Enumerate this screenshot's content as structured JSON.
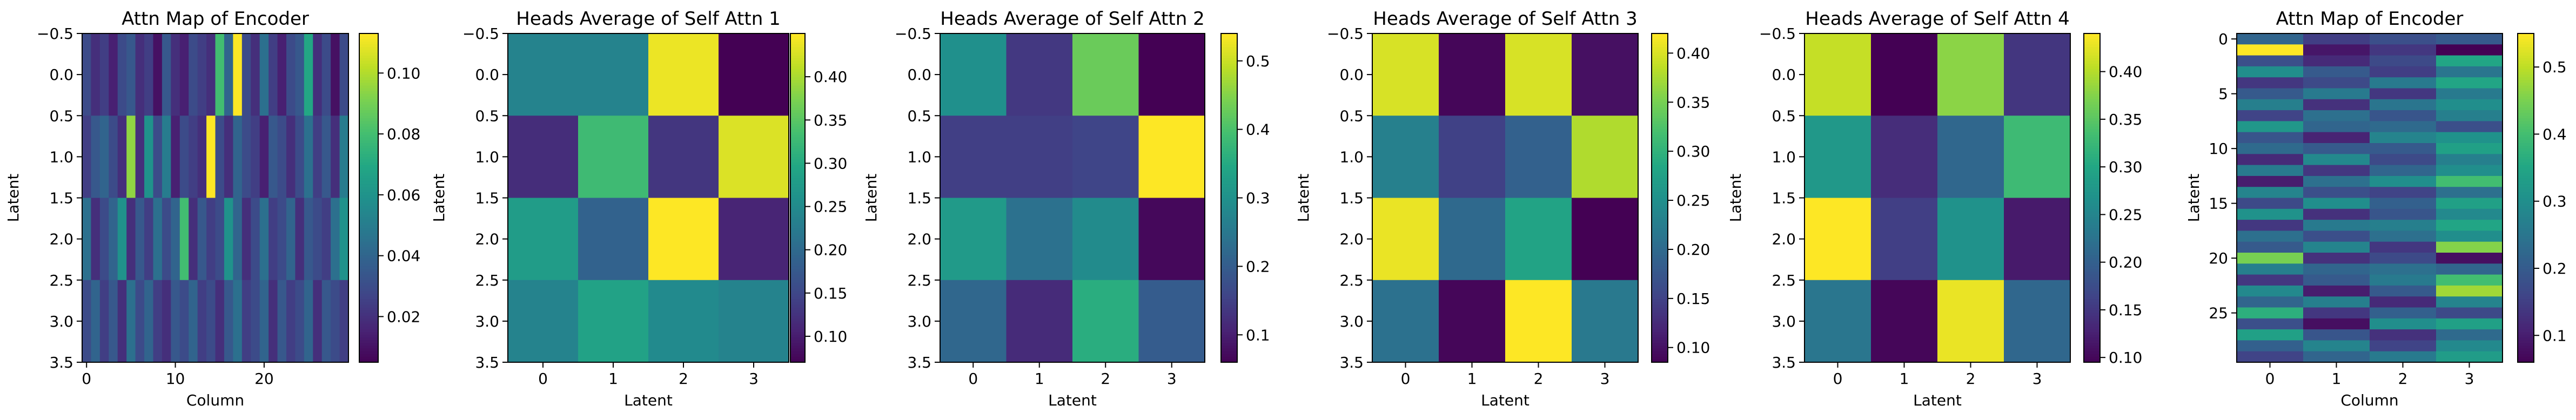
{
  "figure": {
    "panel_count": 6
  },
  "chart_data": [
    {
      "type": "heatmap",
      "title": "Attn Map of Encoder",
      "xlabel": "Column",
      "ylabel": "Latent",
      "x_ticks": [
        0,
        10,
        20
      ],
      "y_ticks": [
        -0.5,
        0.0,
        0.5,
        1.0,
        1.5,
        2.0,
        2.5,
        3.0,
        3.5
      ],
      "y_tick_labels": [
        "−0.5",
        "0.0",
        "0.5",
        "1.0",
        "1.5",
        "2.0",
        "2.5",
        "3.0",
        "3.5"
      ],
      "colorbar_ticks": [
        0.02,
        0.04,
        0.06,
        0.08,
        0.1
      ],
      "colorbar_tick_labels": [
        "0.02",
        "0.04",
        "0.06",
        "0.08",
        "0.10"
      ],
      "vmin": 0.005,
      "vmax": 0.113,
      "values": [
        [
          0.03,
          0.02,
          0.025,
          0.015,
          0.03,
          0.035,
          0.02,
          0.025,
          0.01,
          0.035,
          0.02,
          0.015,
          0.03,
          0.025,
          0.02,
          0.08,
          0.04,
          0.113,
          0.03,
          0.02,
          0.045,
          0.025,
          0.015,
          0.03,
          0.035,
          0.07,
          0.02,
          0.03,
          0.01,
          0.03
        ],
        [
          0.025,
          0.035,
          0.04,
          0.03,
          0.02,
          0.095,
          0.02,
          0.06,
          0.03,
          0.05,
          0.015,
          0.03,
          0.025,
          0.02,
          0.113,
          0.03,
          0.02,
          0.04,
          0.03,
          0.025,
          0.015,
          0.035,
          0.03,
          0.02,
          0.03,
          0.045,
          0.025,
          0.035,
          0.02,
          0.05
        ],
        [
          0.045,
          0.02,
          0.03,
          0.04,
          0.06,
          0.02,
          0.035,
          0.025,
          0.045,
          0.03,
          0.04,
          0.08,
          0.02,
          0.035,
          0.025,
          0.03,
          0.06,
          0.04,
          0.02,
          0.03,
          0.045,
          0.025,
          0.03,
          0.04,
          0.02,
          0.035,
          0.03,
          0.025,
          0.045,
          0.06
        ],
        [
          0.03,
          0.04,
          0.025,
          0.035,
          0.02,
          0.045,
          0.03,
          0.04,
          0.025,
          0.02,
          0.035,
          0.03,
          0.04,
          0.025,
          0.03,
          0.02,
          0.035,
          0.045,
          0.025,
          0.03,
          0.04,
          0.02,
          0.035,
          0.025,
          0.03,
          0.04,
          0.02,
          0.035,
          0.03,
          0.025
        ]
      ]
    },
    {
      "type": "heatmap",
      "title": "Heads Average of Self Attn 1",
      "xlabel": "Latent",
      "ylabel": "Latent",
      "x_ticks": [
        0,
        1,
        2,
        3
      ],
      "y_ticks": [
        -0.5,
        0.0,
        0.5,
        1.0,
        1.5,
        2.0,
        2.5,
        3.0,
        3.5
      ],
      "y_tick_labels": [
        "−0.5",
        "0.0",
        "0.5",
        "1.0",
        "1.5",
        "2.0",
        "2.5",
        "3.0",
        "3.5"
      ],
      "colorbar_ticks": [
        0.1,
        0.15,
        0.2,
        0.25,
        0.3,
        0.35,
        0.4
      ],
      "colorbar_tick_labels": [
        "0.10",
        "0.15",
        "0.20",
        "0.25",
        "0.30",
        "0.35",
        "0.40"
      ],
      "vmin": 0.07,
      "vmax": 0.45,
      "values": [
        [
          0.24,
          0.24,
          0.44,
          0.07
        ],
        [
          0.12,
          0.33,
          0.13,
          0.43
        ],
        [
          0.28,
          0.19,
          0.45,
          0.11
        ],
        [
          0.24,
          0.29,
          0.25,
          0.24
        ]
      ]
    },
    {
      "type": "heatmap",
      "title": "Heads Average of Self Attn 2",
      "xlabel": "Latent",
      "ylabel": "Latent",
      "x_ticks": [
        0,
        1,
        2,
        3
      ],
      "y_ticks": [
        -0.5,
        0.0,
        0.5,
        1.0,
        1.5,
        2.0,
        2.5,
        3.0,
        3.5
      ],
      "y_tick_labels": [
        "−0.5",
        "0.0",
        "0.5",
        "1.0",
        "1.5",
        "2.0",
        "2.5",
        "3.0",
        "3.5"
      ],
      "colorbar_ticks": [
        0.1,
        0.2,
        0.3,
        0.4,
        0.5
      ],
      "colorbar_tick_labels": [
        "0.1",
        "0.2",
        "0.3",
        "0.4",
        "0.5"
      ],
      "vmin": 0.06,
      "vmax": 0.54,
      "values": [
        [
          0.3,
          0.14,
          0.43,
          0.06
        ],
        [
          0.15,
          0.15,
          0.16,
          0.54
        ],
        [
          0.32,
          0.24,
          0.29,
          0.07
        ],
        [
          0.22,
          0.12,
          0.36,
          0.2
        ]
      ]
    },
    {
      "type": "heatmap",
      "title": "Heads Average of Self Attn 3",
      "xlabel": "Latent",
      "ylabel": "Latent",
      "x_ticks": [
        0,
        1,
        2,
        3
      ],
      "y_ticks": [
        -0.5,
        0.0,
        0.5,
        1.0,
        1.5,
        2.0,
        2.5,
        3.0,
        3.5
      ],
      "y_tick_labels": [
        "−0.5",
        "0.0",
        "0.5",
        "1.0",
        "1.5",
        "2.0",
        "2.5",
        "3.0",
        "3.5"
      ],
      "colorbar_ticks": [
        0.1,
        0.15,
        0.2,
        0.25,
        0.3,
        0.35,
        0.4
      ],
      "colorbar_tick_labels": [
        "0.10",
        "0.15",
        "0.20",
        "0.25",
        "0.30",
        "0.35",
        "0.40"
      ],
      "vmin": 0.085,
      "vmax": 0.42,
      "values": [
        [
          0.4,
          0.09,
          0.4,
          0.1
        ],
        [
          0.23,
          0.15,
          0.19,
          0.38
        ],
        [
          0.41,
          0.2,
          0.28,
          0.085
        ],
        [
          0.21,
          0.09,
          0.42,
          0.22
        ]
      ]
    },
    {
      "type": "heatmap",
      "title": "Heads Average of Self Attn 4",
      "xlabel": "Latent",
      "ylabel": "Latent",
      "x_ticks": [
        0,
        1,
        2,
        3
      ],
      "y_ticks": [
        -0.5,
        0.0,
        0.5,
        1.0,
        1.5,
        2.0,
        2.5,
        3.0,
        3.5
      ],
      "y_tick_labels": [
        "−0.5",
        "0.0",
        "0.5",
        "1.0",
        "1.5",
        "2.0",
        "2.5",
        "3.0",
        "3.5"
      ],
      "colorbar_ticks": [
        0.1,
        0.15,
        0.2,
        0.25,
        0.3,
        0.35,
        0.4
      ],
      "colorbar_tick_labels": [
        "0.10",
        "0.15",
        "0.20",
        "0.25",
        "0.30",
        "0.35",
        "0.40"
      ],
      "vmin": 0.095,
      "vmax": 0.44,
      "values": [
        [
          0.41,
          0.095,
          0.38,
          0.15
        ],
        [
          0.28,
          0.14,
          0.21,
          0.33
        ],
        [
          0.44,
          0.16,
          0.27,
          0.12
        ],
        [
          0.23,
          0.1,
          0.43,
          0.21
        ]
      ]
    },
    {
      "type": "heatmap",
      "title": "Attn Map of Encoder",
      "xlabel": "Column",
      "ylabel": "Latent",
      "x_ticks": [
        0,
        1,
        2,
        3
      ],
      "y_ticks": [
        0,
        5,
        10,
        15,
        20,
        25
      ],
      "colorbar_ticks": [
        0.1,
        0.2,
        0.3,
        0.4,
        0.5
      ],
      "colorbar_tick_labels": [
        "0.1",
        "0.2",
        "0.3",
        "0.4",
        "0.5"
      ],
      "vmin": 0.06,
      "vmax": 0.55,
      "values": [
        [
          0.22,
          0.15,
          0.18,
          0.2
        ],
        [
          0.55,
          0.09,
          0.14,
          0.06
        ],
        [
          0.18,
          0.12,
          0.17,
          0.35
        ],
        [
          0.3,
          0.2,
          0.15,
          0.25
        ],
        [
          0.14,
          0.17,
          0.26,
          0.35
        ],
        [
          0.2,
          0.26,
          0.14,
          0.26
        ],
        [
          0.27,
          0.13,
          0.25,
          0.3
        ],
        [
          0.16,
          0.24,
          0.19,
          0.27
        ],
        [
          0.32,
          0.22,
          0.23,
          0.18
        ],
        [
          0.19,
          0.11,
          0.28,
          0.31
        ],
        [
          0.23,
          0.2,
          0.2,
          0.34
        ],
        [
          0.12,
          0.29,
          0.17,
          0.27
        ],
        [
          0.26,
          0.14,
          0.22,
          0.3
        ],
        [
          0.1,
          0.24,
          0.3,
          0.4
        ],
        [
          0.28,
          0.18,
          0.16,
          0.24
        ],
        [
          0.17,
          0.3,
          0.21,
          0.34
        ],
        [
          0.31,
          0.13,
          0.19,
          0.29
        ],
        [
          0.14,
          0.26,
          0.27,
          0.35
        ],
        [
          0.24,
          0.18,
          0.24,
          0.3
        ],
        [
          0.2,
          0.28,
          0.14,
          0.46
        ],
        [
          0.45,
          0.13,
          0.17,
          0.08
        ],
        [
          0.27,
          0.22,
          0.24,
          0.22
        ],
        [
          0.14,
          0.2,
          0.26,
          0.4
        ],
        [
          0.29,
          0.1,
          0.2,
          0.48
        ],
        [
          0.22,
          0.27,
          0.12,
          0.28
        ],
        [
          0.37,
          0.14,
          0.21,
          0.17
        ],
        [
          0.18,
          0.08,
          0.3,
          0.34
        ],
        [
          0.34,
          0.19,
          0.13,
          0.23
        ],
        [
          0.21,
          0.28,
          0.16,
          0.29
        ],
        [
          0.16,
          0.22,
          0.26,
          0.33
        ]
      ]
    }
  ]
}
